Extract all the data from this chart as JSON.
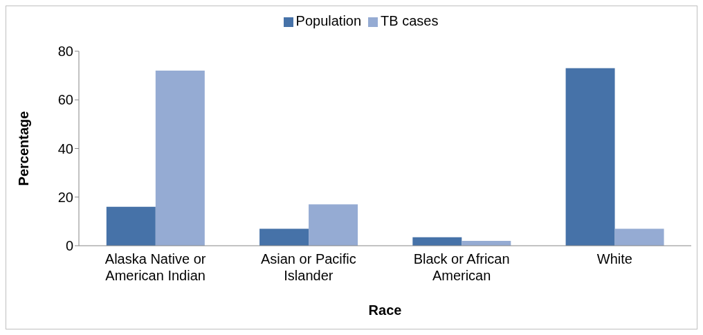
{
  "chart_data": {
    "type": "bar",
    "xlabel": "Race",
    "ylabel": "Percentage",
    "categories": [
      "Alaska Native or American Indian",
      "Asian or Pacific Islander",
      "Black or African American",
      "White"
    ],
    "series": [
      {
        "name": "Population",
        "color": "#4672a8",
        "values": [
          16,
          7,
          3.5,
          73
        ]
      },
      {
        "name": "TB cases",
        "color": "#95abd3",
        "values": [
          72,
          17,
          2,
          7
        ]
      }
    ],
    "ylim": [
      0,
      80
    ],
    "yticks": [
      0,
      20,
      40,
      60,
      80
    ],
    "legend": "top"
  }
}
